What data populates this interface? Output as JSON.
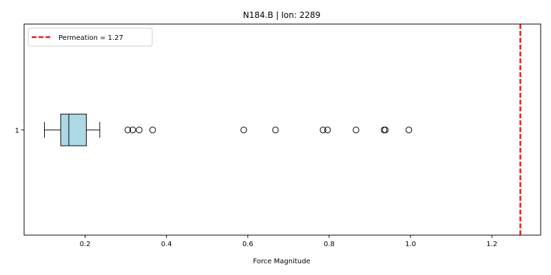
{
  "chart_data": {
    "type": "box",
    "orientation": "horizontal",
    "title": "N184.B | Ion: 2289",
    "xlabel": "Force Magnitude",
    "ylabel": "",
    "xlim": [
      0.05,
      1.32
    ],
    "x_ticks": [
      0.2,
      0.4,
      0.6,
      0.8,
      1.0,
      1.2
    ],
    "x_tick_labels": [
      "0.2",
      "0.4",
      "0.6",
      "0.8",
      "1.0",
      "1.2"
    ],
    "y_ticks": [
      "1"
    ],
    "grid": false,
    "legend_position": "upper left",
    "box": {
      "category": "1",
      "whisker_low": 0.1,
      "q1": 0.14,
      "median": 0.16,
      "q3": 0.203,
      "whisker_high": 0.236,
      "outliers": [
        0.305,
        0.317,
        0.333,
        0.366,
        0.59,
        0.668,
        0.785,
        0.796,
        0.866,
        0.935,
        0.938,
        0.996
      ],
      "fill_color": "#add8e6",
      "edge_color": "#000000"
    },
    "reference_line": {
      "label": "Permeation = 1.27",
      "value": 1.27,
      "color": "#e41a1c",
      "style": "dashed"
    }
  }
}
